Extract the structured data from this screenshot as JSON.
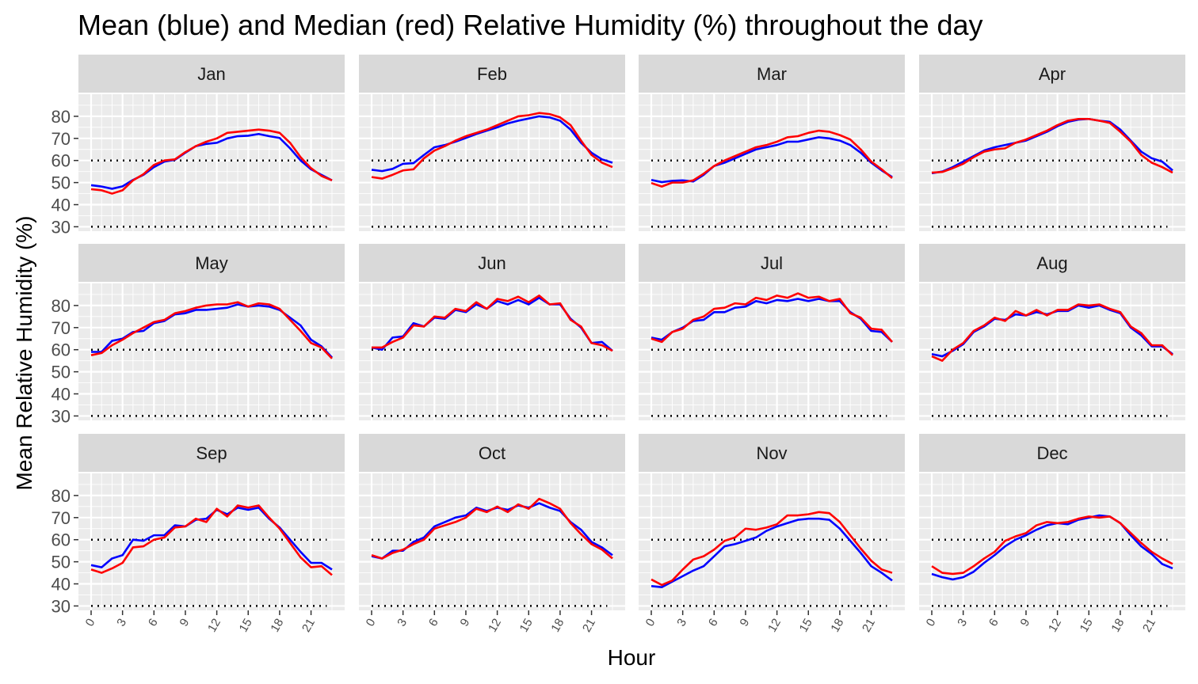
{
  "title": "Mean (blue) and Median (red) Relative Humidity (%) throughout the day",
  "xlabel": "Hour",
  "ylabel": "Mean Relative Humidity (%)",
  "colors": {
    "mean": "#0000ff",
    "median": "#ff0000",
    "panel": "#ebebeb",
    "strip": "#d9d9d9",
    "grid": "#ffffff"
  },
  "chart_data": {
    "type": "line",
    "facet_by": "month",
    "x": [
      0,
      1,
      2,
      3,
      4,
      5,
      6,
      7,
      8,
      9,
      10,
      11,
      12,
      13,
      14,
      15,
      16,
      17,
      18,
      19,
      20,
      21,
      22,
      23
    ],
    "x_ticks": [
      0,
      3,
      6,
      9,
      12,
      15,
      18,
      21
    ],
    "x_tick_labels": [
      "0",
      "3",
      "6",
      "9",
      "12",
      "15",
      "18",
      "21"
    ],
    "y_ticks": [
      30,
      40,
      50,
      60,
      70,
      80
    ],
    "y_tick_labels": [
      "30",
      "40",
      "50",
      "60",
      "70",
      "80"
    ],
    "ylim": [
      28,
      90
    ],
    "reference_lines": [
      30,
      60
    ],
    "grid": true,
    "facets": [
      {
        "label": "Jan",
        "mean": [
          48.8,
          48.2,
          47.2,
          48.3,
          51.2,
          53.5,
          57.0,
          59.5,
          60.3,
          63.5,
          66.5,
          67.5,
          68.0,
          70.0,
          71.0,
          71.2,
          72.0,
          71.0,
          70.2,
          65.5,
          60.0,
          56.0,
          53.5,
          51.0
        ],
        "median": [
          47.0,
          46.5,
          45.0,
          46.5,
          51.0,
          53.8,
          58.0,
          60.0,
          60.5,
          63.8,
          66.5,
          68.5,
          70.0,
          72.5,
          73.0,
          73.5,
          74.0,
          73.5,
          72.5,
          68.0,
          61.5,
          56.5,
          53.0,
          51.0
        ]
      },
      {
        "label": "Feb",
        "mean": [
          55.8,
          55.2,
          56.2,
          58.5,
          58.8,
          62.5,
          66.0,
          67.0,
          68.5,
          70.2,
          72.0,
          73.5,
          75.0,
          76.8,
          78.0,
          79.0,
          80.0,
          79.5,
          78.0,
          74.0,
          68.0,
          63.5,
          60.5,
          59.0
        ],
        "median": [
          52.5,
          51.8,
          53.5,
          55.5,
          56.0,
          61.0,
          64.5,
          66.5,
          69.0,
          71.0,
          72.5,
          74.0,
          76.0,
          78.0,
          80.0,
          80.5,
          81.5,
          81.0,
          79.5,
          76.0,
          69.0,
          62.5,
          59.0,
          57.0
        ]
      },
      {
        "label": "Mar",
        "mean": [
          51.2,
          50.2,
          50.8,
          51.0,
          50.5,
          53.5,
          57.5,
          59.0,
          61.0,
          63.0,
          65.0,
          66.0,
          67.0,
          68.5,
          68.5,
          69.5,
          70.5,
          70.0,
          69.0,
          67.0,
          63.5,
          59.0,
          55.5,
          52.5
        ],
        "median": [
          49.8,
          48.2,
          50.0,
          50.0,
          51.0,
          54.0,
          57.5,
          60.0,
          62.0,
          64.0,
          66.0,
          67.0,
          68.5,
          70.5,
          71.0,
          72.5,
          73.5,
          73.0,
          71.5,
          69.5,
          65.0,
          59.5,
          56.0,
          52.0
        ]
      },
      {
        "label": "Apr",
        "mean": [
          54.2,
          55.0,
          57.0,
          59.5,
          62.0,
          64.5,
          66.0,
          67.0,
          68.0,
          69.0,
          71.0,
          73.0,
          75.5,
          77.5,
          78.5,
          78.8,
          78.0,
          77.5,
          74.0,
          69.0,
          64.0,
          61.0,
          59.5,
          55.5
        ],
        "median": [
          54.5,
          54.8,
          56.5,
          58.5,
          61.5,
          64.0,
          65.0,
          65.5,
          68.0,
          69.5,
          71.5,
          73.5,
          76.0,
          78.0,
          78.8,
          78.8,
          78.0,
          77.0,
          73.0,
          68.5,
          62.5,
          59.0,
          57.0,
          54.5
        ]
      },
      {
        "label": "May",
        "mean": [
          59.0,
          59.0,
          64.0,
          65.0,
          68.0,
          68.5,
          72.0,
          73.0,
          76.0,
          76.5,
          78.0,
          78.0,
          78.5,
          79.0,
          80.5,
          79.5,
          80.0,
          79.5,
          78.0,
          74.5,
          71.0,
          64.5,
          61.5,
          56.5
        ],
        "median": [
          57.5,
          58.5,
          62.0,
          64.5,
          67.5,
          70.0,
          72.5,
          73.5,
          76.5,
          77.5,
          79.0,
          80.0,
          80.5,
          80.5,
          81.5,
          79.5,
          81.0,
          80.5,
          78.5,
          73.5,
          68.5,
          63.0,
          61.0,
          56.0
        ]
      },
      {
        "label": "Jun",
        "mean": [
          61.0,
          60.0,
          65.5,
          66.0,
          72.0,
          70.5,
          74.5,
          74.0,
          78.0,
          77.0,
          80.5,
          78.5,
          82.0,
          80.5,
          82.5,
          80.5,
          83.5,
          80.5,
          80.5,
          74.0,
          70.0,
          63.0,
          63.5,
          59.5
        ],
        "median": [
          61.0,
          61.0,
          63.5,
          65.5,
          71.0,
          70.5,
          75.0,
          74.5,
          78.5,
          77.5,
          81.5,
          78.5,
          83.0,
          82.0,
          84.0,
          81.5,
          84.5,
          80.5,
          81.0,
          73.5,
          70.5,
          63.0,
          62.0,
          59.5
        ]
      },
      {
        "label": "Jul",
        "mean": [
          65.5,
          64.5,
          68.0,
          70.0,
          73.0,
          73.5,
          77.0,
          77.0,
          79.0,
          79.5,
          82.0,
          81.0,
          82.5,
          82.0,
          83.0,
          82.0,
          83.0,
          82.0,
          82.0,
          77.0,
          74.0,
          68.5,
          68.0,
          63.5
        ],
        "median": [
          65.0,
          63.5,
          68.0,
          69.5,
          73.5,
          75.0,
          78.5,
          79.0,
          81.0,
          80.5,
          83.5,
          82.5,
          84.5,
          83.5,
          85.5,
          83.5,
          84.0,
          82.0,
          83.0,
          76.5,
          74.5,
          69.5,
          69.0,
          63.5
        ]
      },
      {
        "label": "Aug",
        "mean": [
          58.0,
          57.0,
          59.5,
          62.5,
          68.0,
          70.5,
          74.0,
          73.5,
          76.0,
          75.5,
          77.0,
          76.0,
          77.5,
          77.5,
          80.0,
          79.0,
          80.0,
          78.0,
          76.5,
          70.0,
          66.5,
          61.5,
          61.5,
          58.0
        ],
        "median": [
          57.0,
          55.0,
          60.0,
          63.0,
          68.5,
          71.0,
          74.5,
          73.0,
          77.5,
          75.5,
          78.0,
          75.5,
          78.0,
          78.0,
          80.5,
          80.0,
          80.5,
          78.5,
          77.0,
          70.5,
          67.5,
          62.0,
          62.0,
          57.5
        ]
      },
      {
        "label": "Sep",
        "mean": [
          48.5,
          47.5,
          51.5,
          53.0,
          60.0,
          59.5,
          62.0,
          62.0,
          66.5,
          66.0,
          69.0,
          69.5,
          73.5,
          71.5,
          74.5,
          73.5,
          74.5,
          69.5,
          65.5,
          60.0,
          54.5,
          49.5,
          49.5,
          46.5
        ],
        "median": [
          46.5,
          45.0,
          47.0,
          49.5,
          56.5,
          57.0,
          60.0,
          61.0,
          65.5,
          66.0,
          69.5,
          68.0,
          74.0,
          70.5,
          75.5,
          74.5,
          75.5,
          70.0,
          65.0,
          58.5,
          52.0,
          47.5,
          48.0,
          44.0
        ]
      },
      {
        "label": "Oct",
        "mean": [
          52.5,
          51.5,
          55.0,
          55.0,
          59.0,
          61.0,
          66.0,
          68.0,
          70.0,
          71.0,
          74.5,
          73.0,
          74.5,
          73.5,
          75.5,
          74.5,
          76.5,
          74.5,
          73.0,
          68.0,
          64.5,
          59.0,
          56.5,
          53.0
        ],
        "median": [
          53.0,
          51.5,
          54.0,
          55.5,
          58.0,
          60.0,
          65.0,
          66.5,
          68.0,
          70.0,
          74.0,
          72.5,
          75.0,
          72.5,
          76.0,
          74.0,
          78.5,
          76.5,
          74.0,
          67.5,
          62.5,
          58.0,
          55.5,
          51.5
        ]
      },
      {
        "label": "Nov",
        "mean": [
          39.0,
          38.5,
          41.0,
          43.5,
          46.0,
          48.0,
          52.5,
          57.0,
          58.0,
          59.5,
          61.0,
          64.0,
          66.0,
          67.5,
          69.0,
          69.5,
          69.5,
          69.0,
          65.0,
          59.5,
          54.0,
          48.0,
          45.0,
          41.5
        ],
        "median": [
          42.0,
          39.5,
          41.5,
          46.5,
          51.0,
          52.5,
          55.5,
          59.5,
          61.0,
          65.0,
          64.5,
          65.5,
          67.0,
          71.0,
          71.0,
          71.5,
          72.5,
          72.0,
          68.0,
          62.0,
          56.0,
          50.5,
          46.5,
          45.0
        ]
      },
      {
        "label": "Dec",
        "mean": [
          44.5,
          43.0,
          42.0,
          43.0,
          45.5,
          49.5,
          53.0,
          57.0,
          60.0,
          62.0,
          64.5,
          66.5,
          67.5,
          67.0,
          69.0,
          70.0,
          71.0,
          70.5,
          67.5,
          62.0,
          57.0,
          53.5,
          49.0,
          47.0
        ],
        "median": [
          48.0,
          45.0,
          44.5,
          45.0,
          48.0,
          51.5,
          54.5,
          59.5,
          61.5,
          63.0,
          66.5,
          68.0,
          67.5,
          68.0,
          69.5,
          70.5,
          70.0,
          70.5,
          67.5,
          63.0,
          58.5,
          54.5,
          51.5,
          49.0
        ]
      }
    ]
  }
}
